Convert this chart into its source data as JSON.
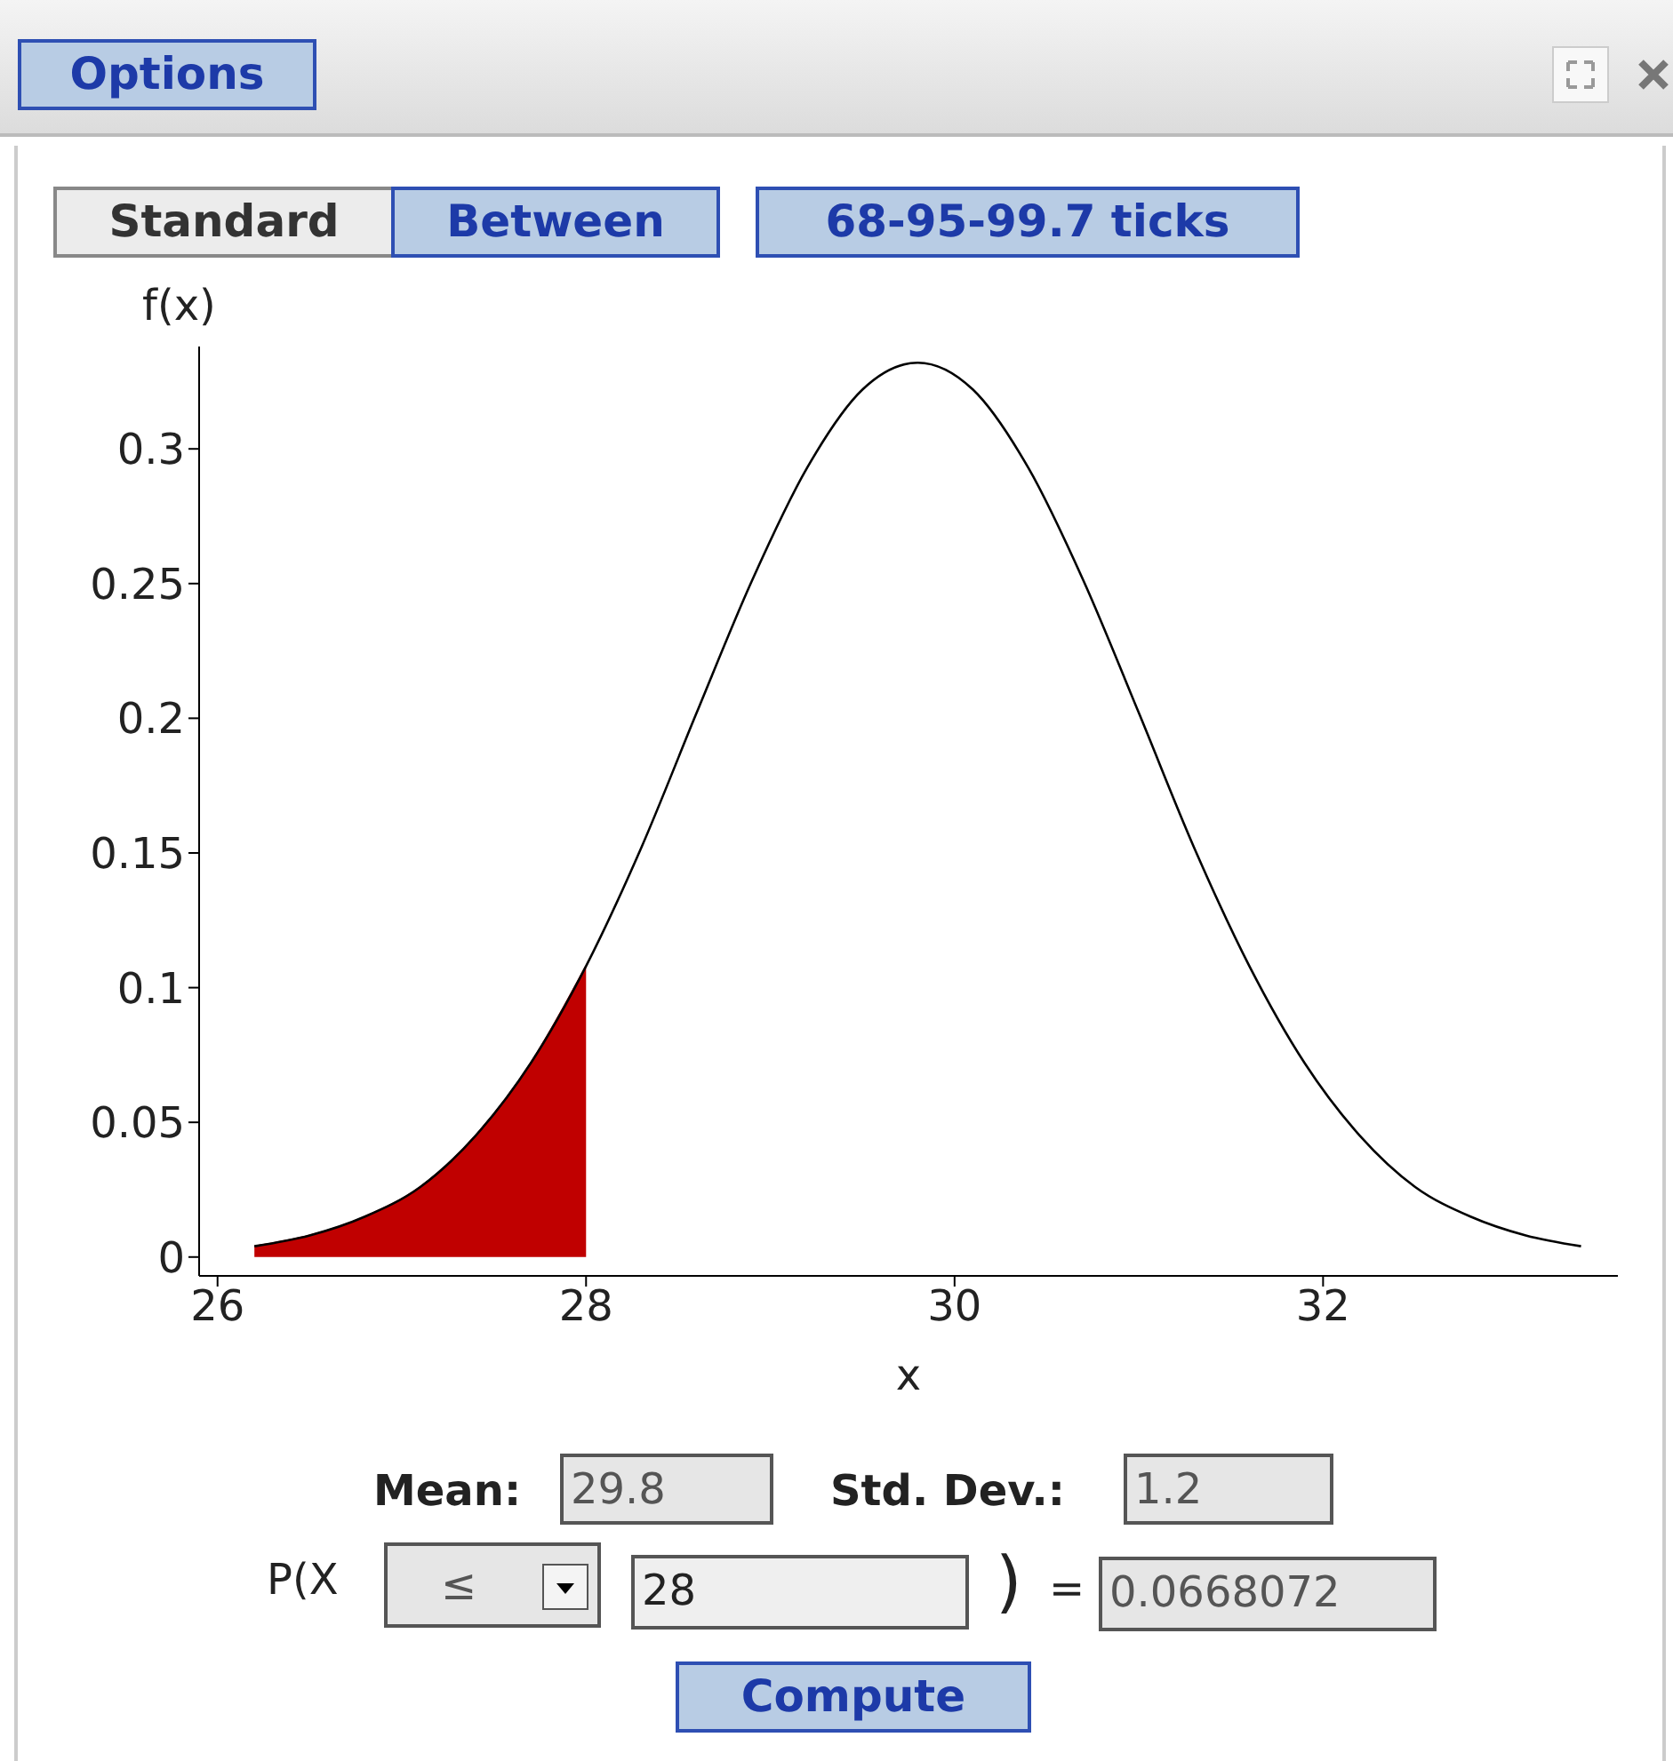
{
  "chart_data": {
    "type": "line",
    "xlabel": "x",
    "ylabel": "f(x)",
    "xlim": [
      25.9,
      33.6
    ],
    "ylim": [
      -0.007,
      0.338
    ],
    "xticks": [
      26,
      28,
      30,
      32
    ],
    "yticks": [
      0,
      0.05,
      0.1,
      0.15,
      0.2,
      0.25,
      0.3
    ],
    "marker": "none",
    "line_style": "solid",
    "series": [
      {
        "type": "line",
        "color": "#000000",
        "x": [
          26.2,
          26.5,
          26.8,
          27.1,
          27.4,
          27.7,
          28.0,
          28.3,
          28.6,
          28.9,
          29.2,
          29.5,
          29.8,
          30.1,
          30.4,
          30.7,
          31.0,
          31.3,
          31.6,
          31.9,
          32.2,
          32.5,
          32.8,
          33.1,
          33.4
        ],
        "values": [
          0.004,
          0.008,
          0.015,
          0.026,
          0.045,
          0.072,
          0.108,
          0.152,
          0.202,
          0.251,
          0.293,
          0.322,
          0.332,
          0.322,
          0.293,
          0.251,
          0.202,
          0.152,
          0.108,
          0.072,
          0.045,
          0.026,
          0.015,
          0.008,
          0.004
        ]
      },
      {
        "type": "area",
        "color": "#c00000",
        "x": [
          26.2,
          26.5,
          26.8,
          27.1,
          27.4,
          27.7,
          28.0
        ],
        "values": [
          0.004,
          0.008,
          0.015,
          0.026,
          0.045,
          0.072,
          0.108
        ]
      }
    ],
    "annotations": [
      "Options",
      "Standard",
      "Between",
      "68-95-99.7 ticks",
      "Mean:",
      "29.8",
      "Std. Dev.:",
      "1.2",
      "P(X",
      "≤",
      "28",
      ")",
      "=",
      "0.0668072",
      "Compute"
    ]
  }
}
